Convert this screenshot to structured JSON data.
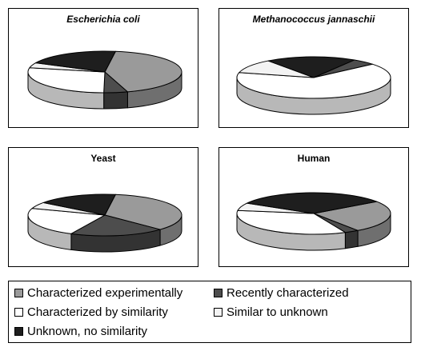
{
  "chart_data": [
    {
      "type": "pie",
      "title": "Escherichia coli",
      "categories": [
        "Characterized experimentally",
        "Recently characterized",
        "Characterized by similarity",
        "Similar to unknown",
        "Unknown, no similarity"
      ],
      "values": [
        43,
        5,
        28,
        4,
        20
      ]
    },
    {
      "type": "pie",
      "title": "Methanococcus jannaschii",
      "categories": [
        "Characterized experimentally",
        "Recently characterized",
        "Characterized by similarity",
        "Similar to unknown",
        "Unknown, no similarity"
      ],
      "values": [
        0,
        5,
        65,
        11,
        19
      ]
    },
    {
      "type": "pie",
      "title": "Yeast",
      "categories": [
        "Characterized experimentally",
        "Recently characterized",
        "Characterized by similarity",
        "Similar to unknown",
        "Unknown, no similarity"
      ],
      "values": [
        35,
        20,
        23,
        5,
        17
      ]
    },
    {
      "type": "pie",
      "title": "Human",
      "categories": [
        "Characterized experimentally",
        "Recently characterized",
        "Characterized by similarity",
        "Similar to unknown",
        "Unknown, no similarity"
      ],
      "values": [
        25,
        3,
        34,
        6,
        32
      ]
    }
  ],
  "legend": {
    "items": [
      {
        "label": "Characterized experimentally",
        "color": "#9a9a9a"
      },
      {
        "label": "Recently characterized",
        "color": "#4d4d4d"
      },
      {
        "label": "Characterized by similarity",
        "color": "#ffffff"
      },
      {
        "label": "Similar to unknown",
        "color": "#f3f3f3"
      },
      {
        "label": "Unknown, no similarity",
        "color": "#1e1e1e"
      }
    ]
  },
  "colors": {
    "top": [
      "#9a9a9a",
      "#4d4d4d",
      "#ffffff",
      "#f3f3f3",
      "#1e1e1e"
    ],
    "side": [
      "#6f6f6f",
      "#333333",
      "#b8b8b8",
      "#c2c2c2",
      "#0f0f0f"
    ]
  }
}
